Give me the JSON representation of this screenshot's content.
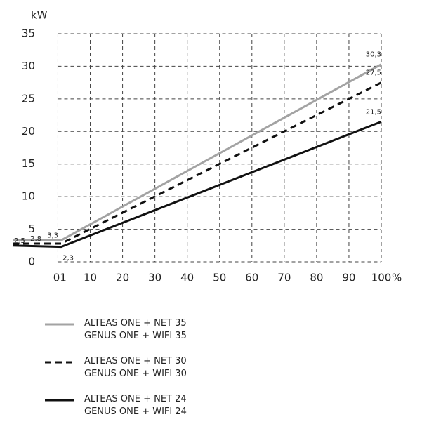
{
  "chart_data": {
    "type": "line",
    "y_label": "kW",
    "x_label": "%",
    "x": [
      -14,
      1,
      100
    ],
    "series": [
      {
        "name": "ALTEAS ONE + NET 35\nGENUS ONE + WIFI 35",
        "color": "#a3a3a3",
        "style": "solid",
        "values": [
          3.3,
          3.3,
          30.3
        ],
        "value_labels": [
          "3,3",
          null,
          "30,3"
        ]
      },
      {
        "name": "ALTEAS ONE + NET 30\nGENUS ONE + WIFI 30",
        "color": "#111111",
        "style": "dashed",
        "values": [
          2.8,
          2.8,
          27.5
        ],
        "value_labels": [
          "2,8",
          null,
          "27,5"
        ]
      },
      {
        "name": "ALTEAS ONE + NET 24\nGENUS ONE + WIFI 24",
        "color": "#111111",
        "style": "solid",
        "values": [
          2.5,
          2.3,
          21.5
        ],
        "value_labels": [
          "2,5",
          "2,3",
          "21,5"
        ]
      }
    ],
    "xlim": [
      -14,
      100
    ],
    "xticks": [
      0,
      1,
      10,
      20,
      30,
      40,
      50,
      60,
      70,
      80,
      90,
      100
    ],
    "ylim": [
      0,
      35
    ],
    "yticks": [
      0,
      5,
      10,
      15,
      20,
      25,
      30,
      35
    ],
    "grid": true,
    "legend": "bottom"
  }
}
